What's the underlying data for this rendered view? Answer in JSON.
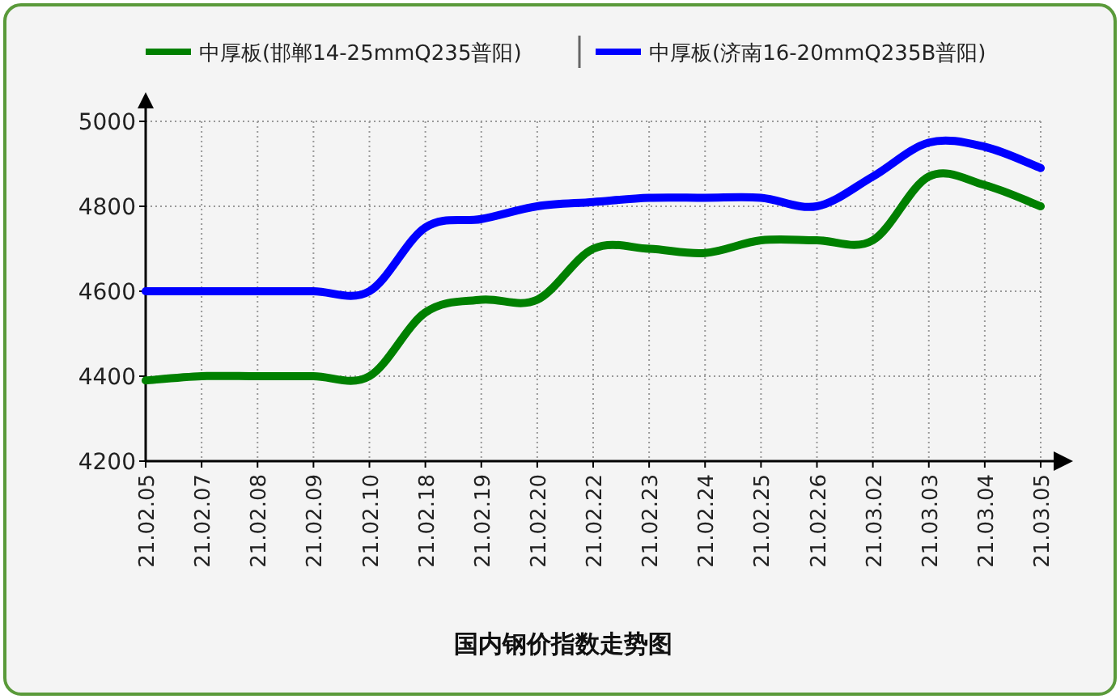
{
  "chart_data": {
    "type": "line",
    "title": "国内钢价指数走势图",
    "categories": [
      "21.02.05",
      "21.02.07",
      "21.02.08",
      "21.02.09",
      "21.02.10",
      "21.02.18",
      "21.02.19",
      "21.02.20",
      "21.02.22",
      "21.02.23",
      "21.02.24",
      "21.02.25",
      "21.02.26",
      "21.03.02",
      "21.03.03",
      "21.03.04",
      "21.03.05"
    ],
    "series": [
      {
        "name": "中厚板(邯郸14-25mmQ235普阳)",
        "color": "#008000",
        "values": [
          4390,
          4400,
          4400,
          4400,
          4400,
          4550,
          4580,
          4580,
          4700,
          4700,
          4690,
          4720,
          4720,
          4720,
          4870,
          4850,
          4800
        ]
      },
      {
        "name": "中厚板(济南16-20mmQ235B普阳)",
        "color": "#0000ff",
        "values": [
          4600,
          4600,
          4600,
          4600,
          4600,
          4750,
          4770,
          4800,
          4810,
          4820,
          4820,
          4820,
          4800,
          4870,
          4950,
          4940,
          4890
        ]
      }
    ],
    "ylim": [
      4200,
      5000
    ],
    "yticks": [
      4200,
      4400,
      4600,
      4800,
      5000
    ],
    "grid": true,
    "legend": "top",
    "marker": "none",
    "line_style": "solid"
  }
}
